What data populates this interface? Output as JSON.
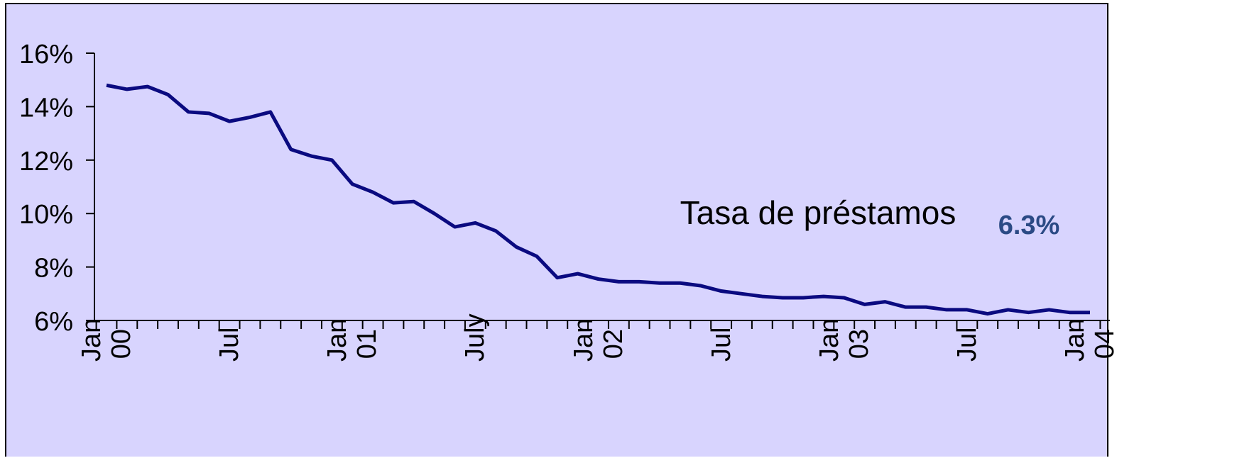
{
  "chart_data": {
    "type": "line",
    "categories": [
      "Jan 00",
      null,
      null,
      null,
      null,
      null,
      "Jul",
      null,
      null,
      null,
      null,
      null,
      "Jan 01",
      null,
      null,
      null,
      null,
      null,
      "July",
      null,
      null,
      null,
      null,
      null,
      "Jan 02",
      null,
      null,
      null,
      null,
      null,
      "Jul",
      null,
      null,
      null,
      null,
      null,
      "Jan 03",
      null,
      null,
      null,
      null,
      null,
      "Jul",
      null,
      null,
      null,
      null,
      null,
      "Jan 04"
    ],
    "series": [
      {
        "name": "Tasa de préstamos",
        "color": "#0a0a80",
        "values": [
          14.8,
          14.65,
          14.75,
          14.45,
          13.8,
          13.75,
          13.45,
          13.6,
          13.8,
          12.4,
          12.15,
          12.0,
          11.1,
          10.8,
          10.4,
          10.45,
          10.0,
          9.5,
          9.65,
          9.35,
          8.75,
          8.4,
          7.6,
          7.75,
          7.55,
          7.45,
          7.45,
          7.4,
          7.4,
          7.3,
          7.1,
          7.0,
          6.9,
          6.85,
          6.85,
          6.9,
          6.85,
          6.6,
          6.7,
          6.5,
          6.5,
          6.4,
          6.4,
          6.25,
          6.4,
          6.3,
          6.4,
          6.3,
          6.3
        ]
      }
    ],
    "end_label": "6.3%",
    "ylim": [
      6,
      16
    ],
    "yticks": [
      {
        "value": 6,
        "label": "6%"
      },
      {
        "value": 8,
        "label": "8%"
      },
      {
        "value": 10,
        "label": "10%"
      },
      {
        "value": 12,
        "label": "12%"
      },
      {
        "value": 14,
        "label": "14%"
      },
      {
        "value": 16,
        "label": "16%"
      }
    ],
    "grid": false
  }
}
